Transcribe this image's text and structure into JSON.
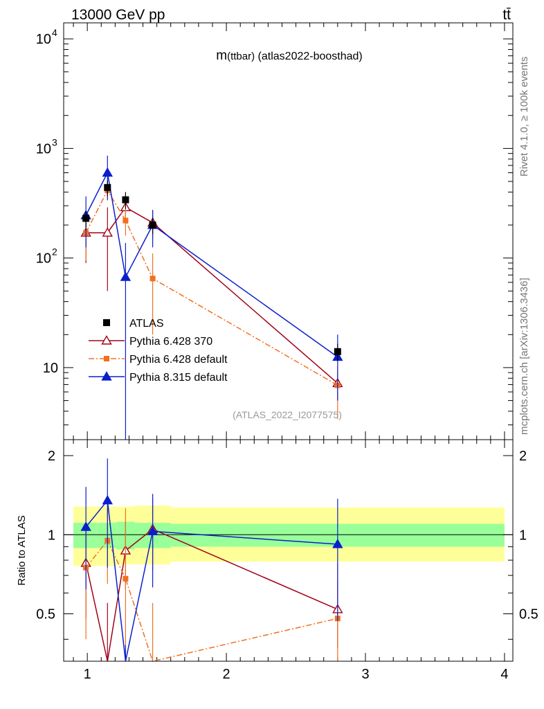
{
  "header": {
    "energy_label": "13000 GeV pp",
    "process_label": "tt̄"
  },
  "side_labels": {
    "rivet": "Rivet 4.1.0, ≥ 100k events",
    "mcplots": "mcplots.cern.ch [arXiv:1306.3436]"
  },
  "chart_data": {
    "type": "scatter",
    "title": "m(ttbar) (atlas2022-boosthad)",
    "title_main": "m",
    "title_paren": "(ttbar)",
    "title_rest": " (atlas2022-boosthad)",
    "watermark": "(ATLAS_2022_I2077575)",
    "yscale": "log",
    "xlim": [
      0.83,
      4.06
    ],
    "ylim_main": [
      2.2,
      14000
    ],
    "ylim_ratio": [
      0.33,
      2.3
    ],
    "x_ticks": [
      {
        "v": 1,
        "label": "1"
      },
      {
        "v": 2,
        "label": "2"
      },
      {
        "v": 3,
        "label": "3"
      },
      {
        "v": 4,
        "label": "4"
      }
    ],
    "y_ticks_main": [
      {
        "v": 10,
        "label": "10"
      },
      {
        "v": 100,
        "label": "10",
        "exp": "2"
      },
      {
        "v": 1000,
        "label": "10",
        "exp": "3"
      },
      {
        "v": 10000,
        "label": "10",
        "exp": "4"
      }
    ],
    "y_ticks_ratio": [
      {
        "v": 0.5,
        "label": "0.5"
      },
      {
        "v": 1,
        "label": "1"
      },
      {
        "v": 2,
        "label": "2"
      }
    ],
    "ratio_ylabel": "Ratio to ATLAS",
    "legend_position": "middle-left",
    "x_values": [
      0.99,
      1.145,
      1.275,
      1.47,
      2.8
    ],
    "bins": [
      [
        0.9,
        1.07
      ],
      [
        1.07,
        1.21
      ],
      [
        1.21,
        1.34
      ],
      [
        1.34,
        1.6
      ],
      [
        1.6,
        4.0
      ]
    ],
    "data": {
      "name": "ATLAS",
      "y": [
        230,
        440,
        340,
        200,
        14
      ],
      "y_err": [
        [
          40,
          40
        ],
        [
          70,
          70
        ],
        [
          60,
          60
        ],
        [
          35,
          35
        ],
        [
          2.5,
          2.5
        ]
      ],
      "band_stat": [
        [
          0.89,
          1.11
        ],
        [
          0.89,
          1.11
        ],
        [
          0.88,
          1.12
        ],
        [
          0.89,
          1.11
        ],
        [
          0.9,
          1.1
        ]
      ],
      "band_total": [
        [
          0.76,
          1.28
        ],
        [
          0.76,
          1.28
        ],
        [
          0.77,
          1.28
        ],
        [
          0.77,
          1.29
        ],
        [
          0.79,
          1.27
        ]
      ]
    },
    "series": [
      {
        "name": "Pythia 6.428 370",
        "color": "#a00018",
        "marker": "triangle-open",
        "dash": "",
        "y": [
          170,
          170,
          290,
          210,
          7.2
        ],
        "y_err": [
          [
            80,
            80
          ],
          [
            120,
            120
          ],
          [
            80,
            80
          ],
          [
            60,
            60
          ],
          [
            2.2,
            2.2
          ]
        ],
        "ratio": [
          0.78,
          0.33,
          0.87,
          1.05,
          0.52
        ],
        "ratio_err": [
          [
            0.3,
            0.3
          ],
          [
            0.22,
            0.22
          ],
          [
            0.25,
            0.25
          ],
          [
            0.32,
            0.32
          ],
          [
            0.15,
            0.15
          ]
        ]
      },
      {
        "name": "Pythia 6.428 default",
        "color": "#f07020",
        "marker": "square",
        "dash": "8,3,2,3",
        "y": [
          170,
          415,
          220,
          65,
          6.9
        ],
        "y_err": [
          [
            75,
            75
          ],
          [
            80,
            80
          ],
          [
            60,
            60
          ],
          [
            45,
            45
          ],
          [
            3.5,
            3.5
          ]
        ],
        "ratio": [
          0.75,
          0.95,
          0.68,
          0.3,
          0.48
        ],
        "ratio_err": [
          [
            0.35,
            0.35
          ],
          [
            0.3,
            0.3
          ],
          [
            0.58,
            0.58
          ],
          [
            0.25,
            0.25
          ],
          [
            0.3,
            0.3
          ]
        ]
      },
      {
        "name": "Pythia 8.315 default",
        "color": "#0a1ecc",
        "marker": "triangle",
        "dash": "",
        "y": [
          245,
          600,
          67,
          200,
          12.5
        ],
        "y_err": [
          [
            120,
            120
          ],
          [
            260,
            260
          ],
          [
            70,
            70
          ],
          [
            75,
            75
          ],
          [
            7.5,
            7.5
          ]
        ],
        "ratio": [
          1.07,
          1.35,
          0.18,
          1.03,
          0.92
        ],
        "ratio_err": [
          [
            0.45,
            0.45
          ],
          [
            0.6,
            0.6
          ],
          [
            0.2,
            0.2
          ],
          [
            0.4,
            0.4
          ],
          [
            0.45,
            0.45
          ]
        ]
      }
    ]
  }
}
